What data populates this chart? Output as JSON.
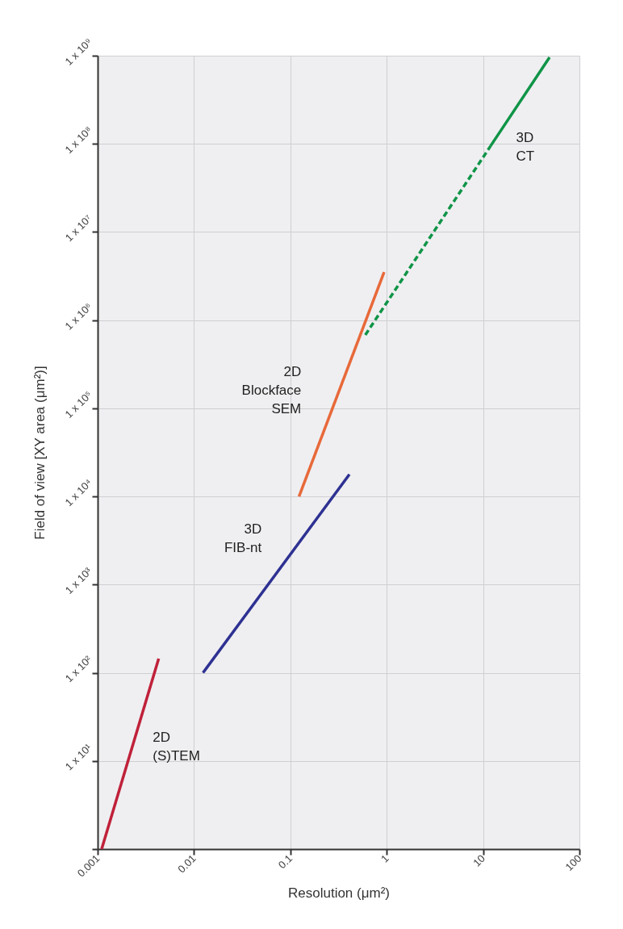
{
  "chart_data": {
    "type": "line",
    "xlabel": "Resolution (μm²)",
    "ylabel": "Field of view [XY area (μm²)]",
    "log": "xy",
    "grid": true,
    "marker": "none",
    "xlim": [
      0.001,
      100
    ],
    "xticks": [
      0.001,
      0.01,
      0.1,
      1,
      10,
      100
    ],
    "ylim": [
      1,
      1000000000
    ],
    "yticks": [
      {
        "value": 1,
        "label": null
      },
      {
        "value": 10,
        "label": "1 x 10¹"
      },
      {
        "value": 100,
        "label": "1 x 10²"
      },
      {
        "value": 1000,
        "label": "1 x 10³"
      },
      {
        "value": 10000,
        "label": "1 x 10⁴"
      },
      {
        "value": 100000,
        "label": "1 x 10⁵"
      },
      {
        "value": 1000000,
        "label": "1 x 10⁶"
      },
      {
        "value": 10000000,
        "label": "1 x 10⁷"
      },
      {
        "value": 100000000,
        "label": "1 x 10⁸"
      },
      {
        "value": 1000000000,
        "label": "1 x 10⁹"
      }
    ],
    "series": [
      {
        "name": "2D (S)TEM",
        "color": "#c0213a",
        "x": [
          0.0011,
          0.0043
        ],
        "values": [
          1,
          145
        ],
        "line_style": "solid"
      },
      {
        "name": "3D FIB-nt",
        "color": "#2e3192",
        "x": [
          0.0124,
          0.41
        ],
        "values": [
          100,
          17800
        ],
        "line_style": "solid"
      },
      {
        "name": "2D Blockface SEM",
        "color": "#e8693a",
        "x": [
          0.123,
          0.94
        ],
        "values": [
          10000,
          3500000
        ],
        "line_style": "solid"
      },
      {
        "color": "#0f9447",
        "x": [
          0.6,
          12
        ],
        "values": [
          680000,
          95000000
        ],
        "line_style": "dashed"
      },
      {
        "name": "3D CT",
        "color": "#0f9447",
        "x": [
          12,
          49
        ],
        "values": [
          95000000,
          960000000
        ],
        "line_style": "solid"
      }
    ]
  }
}
